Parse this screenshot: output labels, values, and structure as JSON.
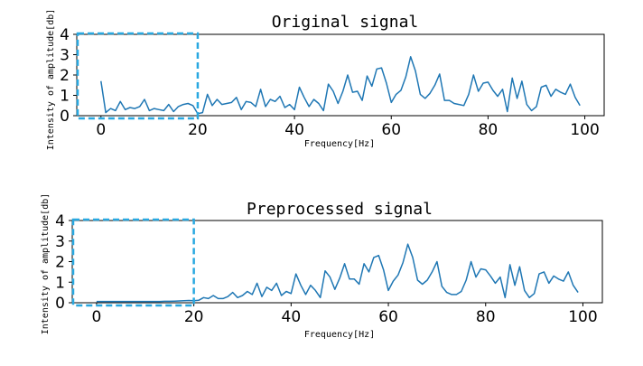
{
  "colors": {
    "series": "#1f77b4",
    "highlight": "#29a8e0"
  },
  "chart_data": [
    {
      "type": "line",
      "title": "Original signal",
      "xlabel": "Frequency[Hz]",
      "ylabel": "Intensity of amplitude[db]",
      "xlim": [
        -5,
        104
      ],
      "ylim": [
        0,
        4
      ],
      "xticks": [
        0,
        20,
        40,
        60,
        80,
        100
      ],
      "yticks": [
        0,
        1,
        2,
        3,
        4
      ],
      "grid": false,
      "highlight_region": {
        "x": [
          -5,
          20
        ],
        "y": [
          0,
          4
        ]
      },
      "series": [
        {
          "x": [
            0,
            1,
            2,
            3,
            4,
            5,
            6,
            7,
            8,
            9,
            10,
            11,
            12,
            13,
            14,
            15,
            16,
            17,
            18,
            19,
            20,
            21,
            22,
            23,
            24,
            25,
            26,
            27,
            28,
            29,
            30,
            31,
            32,
            33,
            34,
            35,
            36,
            37,
            38,
            39,
            40,
            41,
            42,
            43,
            44,
            45,
            46,
            47,
            48,
            49,
            50,
            51,
            52,
            53,
            54,
            55,
            56,
            57,
            58,
            59,
            60,
            61,
            62,
            63,
            64,
            65,
            66,
            67,
            68,
            69,
            70,
            71,
            72,
            73,
            74,
            75,
            76,
            77,
            78,
            79,
            80,
            81,
            82,
            83,
            84,
            85,
            86,
            87,
            88,
            89,
            90,
            91,
            92,
            93,
            94,
            95,
            96,
            97,
            98,
            99
          ],
          "y": [
            1.7,
            0.15,
            0.35,
            0.25,
            0.7,
            0.3,
            0.4,
            0.35,
            0.45,
            0.8,
            0.25,
            0.35,
            0.3,
            0.25,
            0.55,
            0.2,
            0.45,
            0.55,
            0.6,
            0.5,
            0.1,
            0.15,
            1.05,
            0.5,
            0.8,
            0.55,
            0.6,
            0.65,
            0.9,
            0.3,
            0.7,
            0.65,
            0.45,
            1.3,
            0.45,
            0.8,
            0.7,
            0.95,
            0.4,
            0.55,
            0.3,
            1.4,
            0.9,
            0.45,
            0.8,
            0.6,
            0.25,
            1.55,
            1.2,
            0.6,
            1.2,
            2.0,
            1.15,
            1.2,
            0.75,
            1.95,
            1.45,
            2.3,
            2.35,
            1.6,
            0.65,
            1.05,
            1.25,
            1.9,
            2.9,
            2.2,
            1.05,
            0.85,
            1.1,
            1.5,
            2.05,
            0.75,
            0.75,
            0.6,
            0.55,
            0.5,
            1.05,
            2.0,
            1.2,
            1.6,
            1.65,
            1.25,
            0.95,
            1.3,
            0.2,
            1.85,
            0.85,
            1.7,
            0.55,
            0.25,
            0.45,
            1.4,
            1.5,
            0.95,
            1.3,
            1.15,
            1.05,
            1.55,
            0.9,
            0.5
          ]
        }
      ]
    },
    {
      "type": "line",
      "title": "Preprocessed signal",
      "xlabel": "Frequency[Hz]",
      "ylabel": "Intensity of amplitude[db]",
      "xlim": [
        -5,
        104
      ],
      "ylim": [
        0,
        4
      ],
      "xticks": [
        0,
        20,
        40,
        60,
        80,
        100
      ],
      "yticks": [
        0,
        1,
        2,
        3,
        4
      ],
      "grid": false,
      "highlight_region": {
        "x": [
          -5,
          20
        ],
        "y": [
          0,
          4
        ]
      },
      "series": [
        {
          "x": [
            0,
            1,
            2,
            3,
            4,
            5,
            6,
            7,
            8,
            9,
            10,
            11,
            12,
            13,
            14,
            15,
            16,
            17,
            18,
            19,
            20,
            21,
            22,
            23,
            24,
            25,
            26,
            27,
            28,
            29,
            30,
            31,
            32,
            33,
            34,
            35,
            36,
            37,
            38,
            39,
            40,
            41,
            42,
            43,
            44,
            45,
            46,
            47,
            48,
            49,
            50,
            51,
            52,
            53,
            54,
            55,
            56,
            57,
            58,
            59,
            60,
            61,
            62,
            63,
            64,
            65,
            66,
            67,
            68,
            69,
            70,
            71,
            72,
            73,
            74,
            75,
            76,
            77,
            78,
            79,
            80,
            81,
            82,
            83,
            84,
            85,
            86,
            87,
            88,
            89,
            90,
            91,
            92,
            93,
            94,
            95,
            96,
            97,
            98,
            99
          ],
          "y": [
            0.06,
            0.06,
            0.06,
            0.06,
            0.06,
            0.06,
            0.06,
            0.06,
            0.06,
            0.06,
            0.06,
            0.06,
            0.06,
            0.06,
            0.07,
            0.07,
            0.08,
            0.09,
            0.1,
            0.11,
            0.1,
            0.12,
            0.25,
            0.2,
            0.35,
            0.2,
            0.2,
            0.3,
            0.5,
            0.25,
            0.35,
            0.55,
            0.4,
            0.95,
            0.3,
            0.75,
            0.6,
            0.95,
            0.35,
            0.55,
            0.45,
            1.4,
            0.85,
            0.4,
            0.85,
            0.6,
            0.25,
            1.55,
            1.25,
            0.65,
            1.2,
            1.9,
            1.15,
            1.15,
            0.9,
            1.9,
            1.5,
            2.2,
            2.3,
            1.6,
            0.6,
            1.05,
            1.35,
            1.95,
            2.85,
            2.2,
            1.1,
            0.9,
            1.1,
            1.5,
            2.0,
            0.8,
            0.5,
            0.4,
            0.4,
            0.55,
            1.1,
            2.0,
            1.25,
            1.65,
            1.6,
            1.3,
            0.95,
            1.25,
            0.25,
            1.85,
            0.85,
            1.75,
            0.6,
            0.25,
            0.45,
            1.4,
            1.5,
            0.95,
            1.3,
            1.15,
            1.05,
            1.5,
            0.85,
            0.5
          ]
        }
      ]
    }
  ]
}
